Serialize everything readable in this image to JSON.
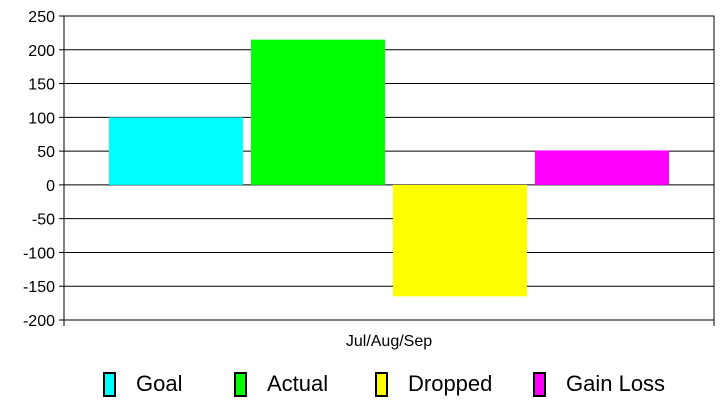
{
  "chart_data": {
    "type": "bar",
    "categories": [
      "Jul/Aug/Sep"
    ],
    "series": [
      {
        "name": "Goal",
        "values": [
          100
        ],
        "color": "#00FFFF"
      },
      {
        "name": "Actual",
        "values": [
          215
        ],
        "color": "#00FF00"
      },
      {
        "name": "Dropped",
        "values": [
          -165
        ],
        "color": "#FFFF00"
      },
      {
        "name": "Gain Loss",
        "values": [
          51
        ],
        "color": "#FF00FF"
      }
    ],
    "title": "",
    "xlabel": "",
    "ylabel": "",
    "ylim": [
      -200,
      250
    ],
    "yticks": [
      "250",
      "200",
      "150",
      "100",
      "50",
      "0",
      "-50",
      "-100",
      "-150",
      "-200"
    ],
    "grid": true,
    "legend_position": "bottom"
  }
}
